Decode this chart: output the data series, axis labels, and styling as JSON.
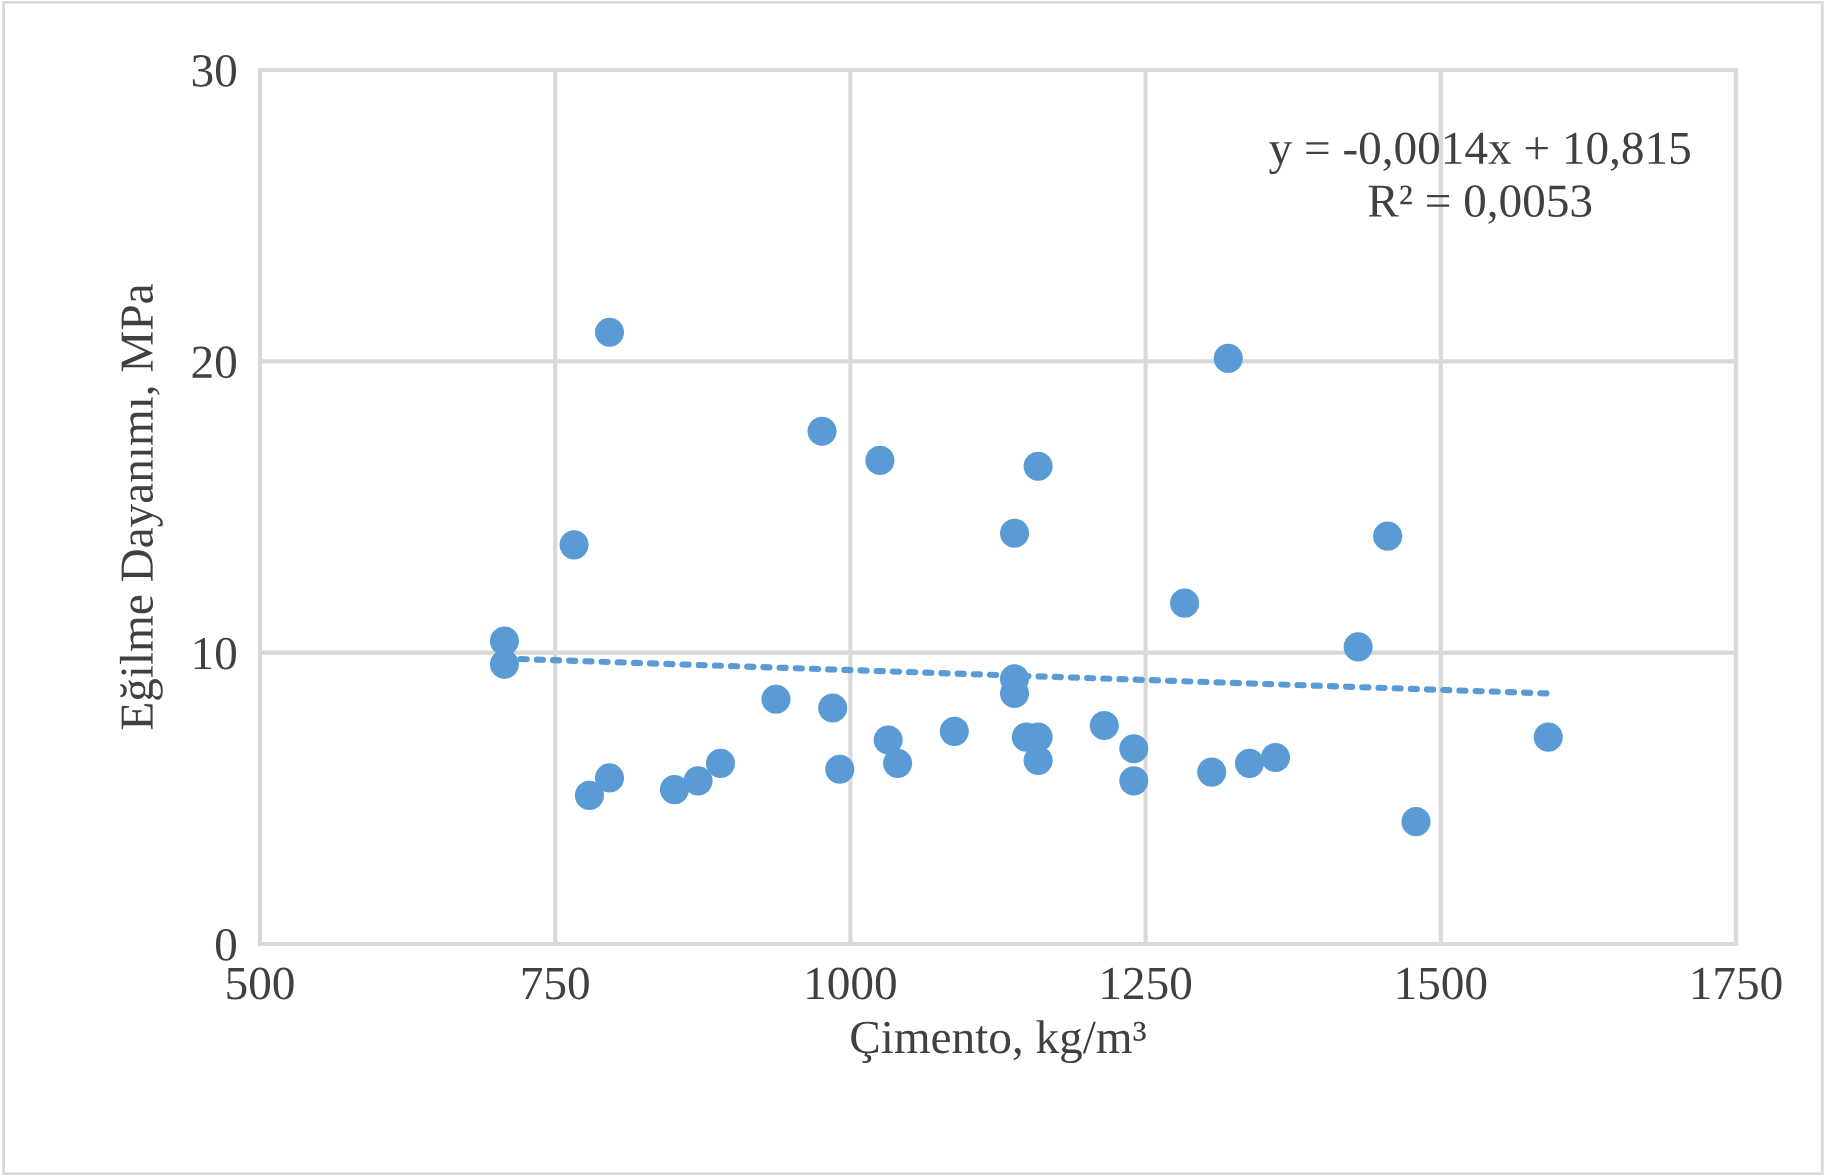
{
  "chart_data": {
    "type": "scatter",
    "xlabel": "Çimento, kg/m³",
    "ylabel": "Eğilme Dayanımı, MPa",
    "xlim": [
      500,
      1750
    ],
    "xticks": [
      500,
      750,
      1000,
      1250,
      1500,
      1750
    ],
    "ylim": [
      0,
      30
    ],
    "yticks": [
      0,
      10,
      20,
      30
    ],
    "grid": true,
    "series": [
      {
        "marker": "circle",
        "color": "#5b9bd5",
        "x": [
          707,
          707,
          766,
          796,
          779,
          796,
          851,
          871,
          890,
          937,
          976,
          985,
          991,
          1025,
          1032,
          1040,
          1088,
          1139,
          1139,
          1139,
          1149,
          1159,
          1159,
          1159,
          1215,
          1240,
          1240,
          1283,
          1306,
          1320,
          1338,
          1360,
          1430,
          1455,
          1479,
          1591
        ],
        "values": [
          10.4,
          9.6,
          13.7,
          21.0,
          5.1,
          5.7,
          5.3,
          5.6,
          6.2,
          8.4,
          17.6,
          8.1,
          6.0,
          16.6,
          7.0,
          6.2,
          7.3,
          14.1,
          9.1,
          8.6,
          7.1,
          7.1,
          6.3,
          16.4,
          7.5,
          6.7,
          5.6,
          11.7,
          5.9,
          20.1,
          6.2,
          6.4,
          10.2,
          14.0,
          4.2,
          7.1
        ]
      },
      {
        "type": "line",
        "color": "#5b9bd5",
        "line_style": "dotted",
        "x": [
          707,
          1591
        ],
        "values": [
          9.8,
          8.6
        ]
      }
    ],
    "annotations": [
      "y = -0,0014x + 10,815\nR² = 0,0053"
    ]
  }
}
